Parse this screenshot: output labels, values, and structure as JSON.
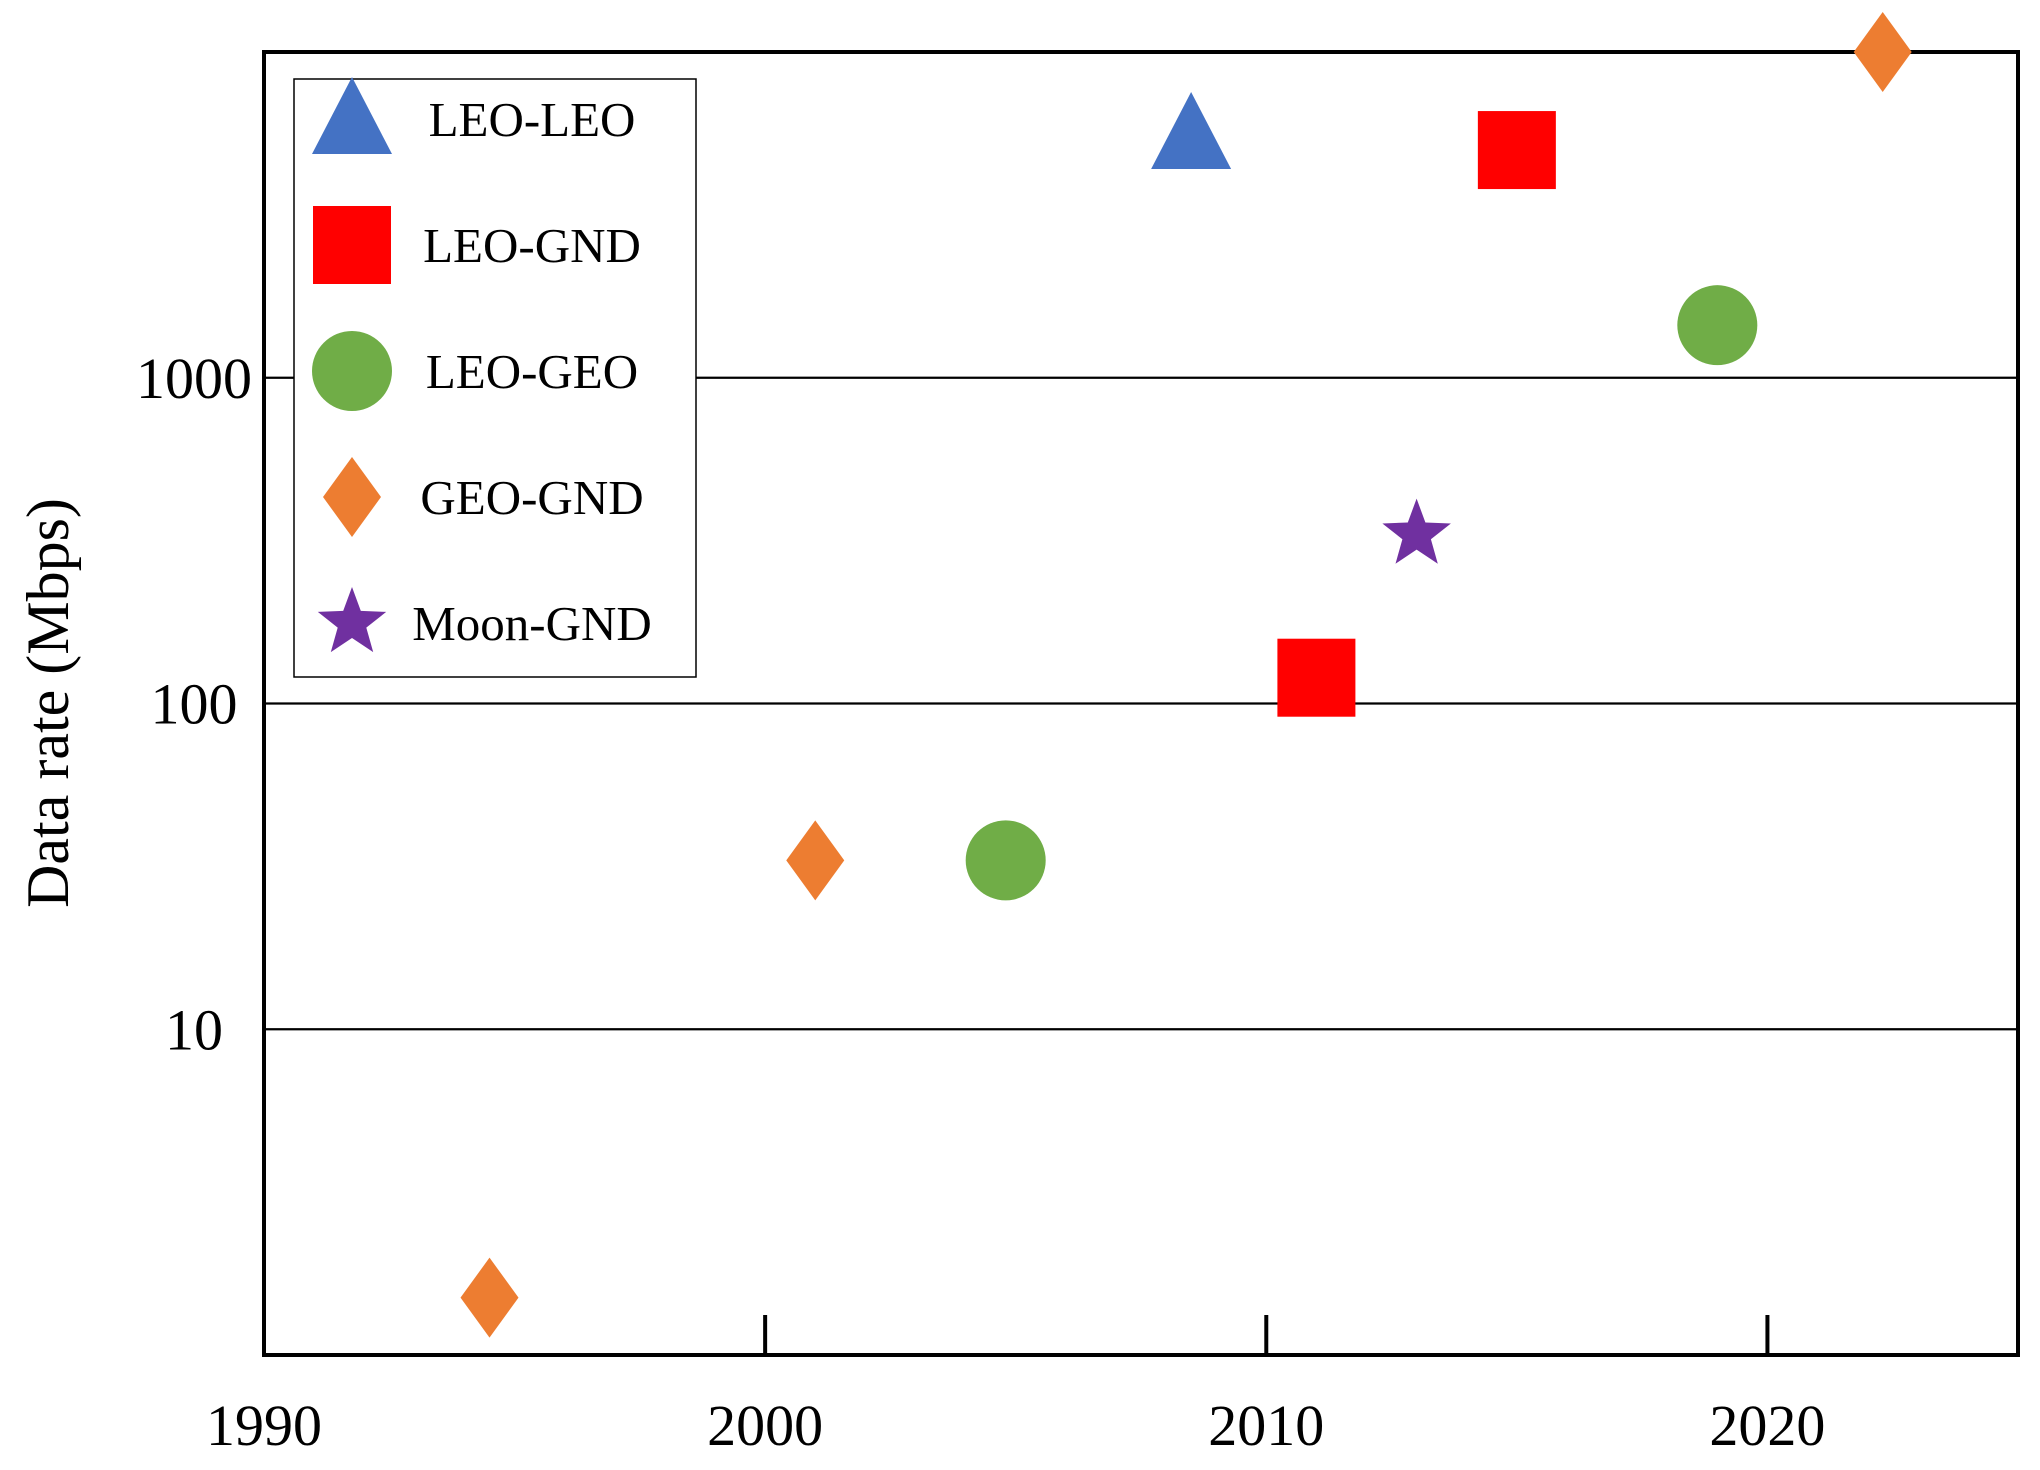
{
  "chart_data": {
    "type": "scatter",
    "xlabel": "",
    "ylabel": "Data rate (Mbps)",
    "x_scale": "linear",
    "y_scale": "log",
    "xlim": [
      1990,
      2025
    ],
    "ylim": [
      1,
      10000
    ],
    "x_ticks": [
      1990,
      2000,
      2010,
      2020
    ],
    "x_tick_labels": [
      "1990",
      "2000",
      "2010",
      "2020"
    ],
    "y_ticks": [
      10,
      100,
      1000
    ],
    "y_tick_labels": [
      "10",
      "100",
      "1000"
    ],
    "grid": "horizontal major lines",
    "legend_position": "top-left",
    "series": [
      {
        "name": "LEO-LEO",
        "marker": "triangle-icon",
        "color": "#4472C4",
        "x": [
          2008.5
        ],
        "y": [
          5600
        ]
      },
      {
        "name": "LEO-GND",
        "marker": "square-icon",
        "color": "#FF0000",
        "x": [
          2011,
          2015
        ],
        "y": [
          120,
          5000
        ]
      },
      {
        "name": "LEO-GEO",
        "marker": "circle-icon",
        "color": "#70AD47",
        "x": [
          2004.8,
          2019
        ],
        "y": [
          33,
          1450
        ]
      },
      {
        "name": "GEO-GND",
        "marker": "diamond-icon",
        "color": "#ED7D31",
        "x": [
          1994.5,
          2001,
          2022.3
        ],
        "y": [
          1.5,
          33,
          10000
        ]
      },
      {
        "name": "Moon-GND",
        "marker": "star-icon",
        "color": "#7030A0",
        "x": [
          2013
        ],
        "y": [
          330
        ]
      }
    ]
  }
}
